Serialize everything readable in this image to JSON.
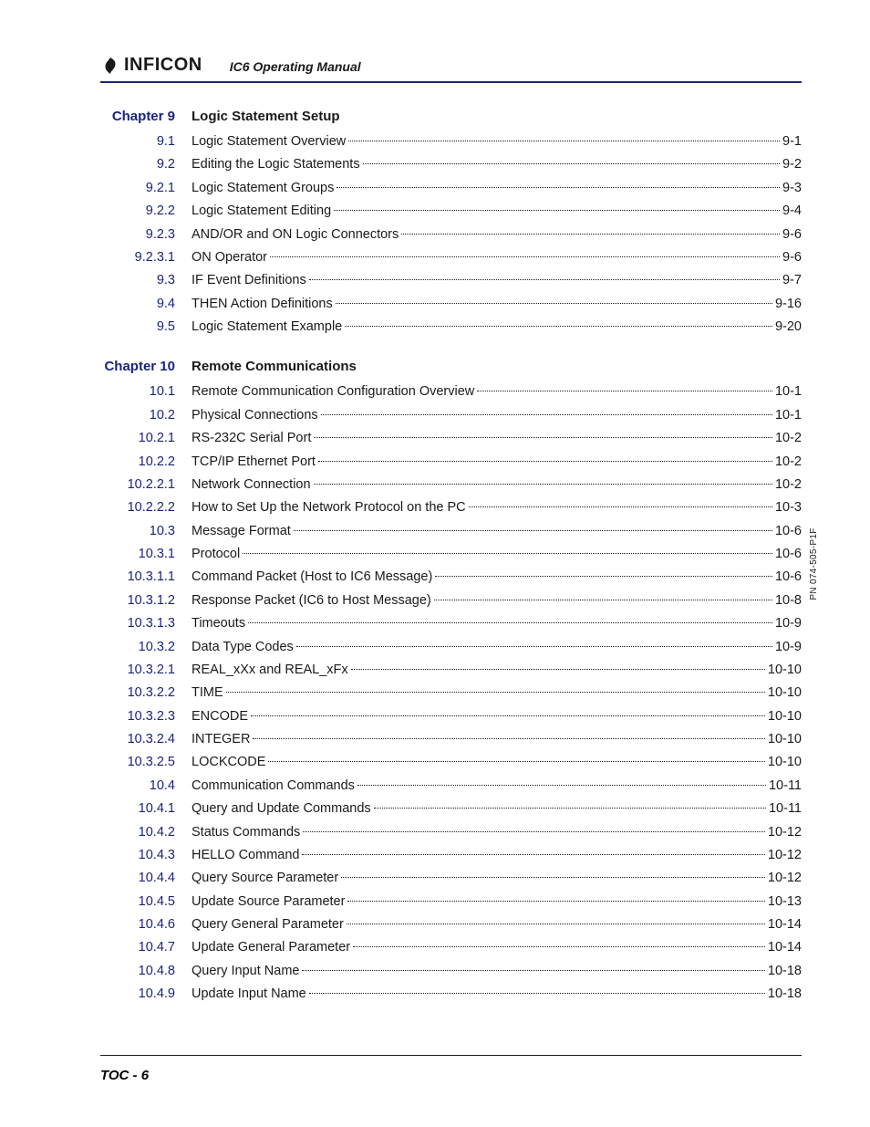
{
  "header": {
    "logo_text": "INFICON",
    "manual_title": "IC6 Operating Manual"
  },
  "side_label": "PN 074-505-P1F",
  "footer": "TOC - 6",
  "colors": {
    "link": "#1a237e",
    "text": "#1a1a1a",
    "rule": "#1a237e"
  },
  "chapters": [
    {
      "chapter_label": "Chapter 9",
      "chapter_title": "Logic Statement Setup",
      "entries": [
        {
          "num": "9.1",
          "title": "Logic Statement Overview",
          "page": "9-1"
        },
        {
          "num": "9.2",
          "title": "Editing the Logic Statements",
          "page": "9-2"
        },
        {
          "num": "9.2.1",
          "title": "Logic Statement Groups",
          "page": "9-3"
        },
        {
          "num": "9.2.2",
          "title": "Logic Statement Editing",
          "page": "9-4"
        },
        {
          "num": "9.2.3",
          "title": "AND/OR and ON Logic Connectors",
          "page": "9-6"
        },
        {
          "num": "9.2.3.1",
          "title": "ON Operator",
          "page": "9-6"
        },
        {
          "num": "9.3",
          "title": "IF Event Definitions",
          "page": "9-7"
        },
        {
          "num": "9.4",
          "title": "THEN Action Definitions",
          "page": "9-16"
        },
        {
          "num": "9.5",
          "title": "Logic Statement Example",
          "page": "9-20"
        }
      ]
    },
    {
      "chapter_label": "Chapter 10",
      "chapter_title": "Remote Communications",
      "entries": [
        {
          "num": "10.1",
          "title": "Remote Communication Configuration Overview",
          "page": "10-1"
        },
        {
          "num": "10.2",
          "title": "Physical Connections",
          "page": "10-1"
        },
        {
          "num": "10.2.1",
          "title": "RS-232C Serial Port",
          "page": "10-2"
        },
        {
          "num": "10.2.2",
          "title": "TCP/IP Ethernet Port",
          "page": "10-2"
        },
        {
          "num": "10.2.2.1",
          "title": "Network Connection",
          "page": "10-2"
        },
        {
          "num": "10.2.2.2",
          "title": "How to Set Up the Network Protocol on the PC",
          "page": "10-3"
        },
        {
          "num": "10.3",
          "title": "Message Format",
          "page": "10-6"
        },
        {
          "num": "10.3.1",
          "title": "Protocol",
          "page": "10-6"
        },
        {
          "num": "10.3.1.1",
          "title": "Command Packet (Host to IC6 Message)",
          "page": "10-6"
        },
        {
          "num": "10.3.1.2",
          "title": "Response Packet (IC6 to Host Message)",
          "page": "10-8"
        },
        {
          "num": "10.3.1.3",
          "title": "Timeouts",
          "page": "10-9"
        },
        {
          "num": "10.3.2",
          "title": "Data Type Codes",
          "page": "10-9"
        },
        {
          "num": "10.3.2.1",
          "title": "REAL_xXx and REAL_xFx",
          "page": "10-10"
        },
        {
          "num": "10.3.2.2",
          "title": "TIME",
          "page": "10-10"
        },
        {
          "num": "10.3.2.3",
          "title": "ENCODE",
          "page": "10-10"
        },
        {
          "num": "10.3.2.4",
          "title": "INTEGER",
          "page": "10-10"
        },
        {
          "num": "10.3.2.5",
          "title": "LOCKCODE",
          "page": "10-10"
        },
        {
          "num": "10.4",
          "title": "Communication Commands",
          "page": "10-11"
        },
        {
          "num": "10.4.1",
          "title": "Query and Update Commands",
          "page": "10-11"
        },
        {
          "num": "10.4.2",
          "title": "Status Commands",
          "page": "10-12"
        },
        {
          "num": "10.4.3",
          "title": "HELLO Command",
          "page": "10-12"
        },
        {
          "num": "10.4.4",
          "title": "Query Source Parameter",
          "page": "10-12"
        },
        {
          "num": "10.4.5",
          "title": "Update Source Parameter",
          "page": "10-13"
        },
        {
          "num": "10.4.6",
          "title": "Query General Parameter",
          "page": "10-14"
        },
        {
          "num": "10.4.7",
          "title": "Update General Parameter",
          "page": "10-14"
        },
        {
          "num": "10.4.8",
          "title": "Query Input Name",
          "page": "10-18"
        },
        {
          "num": "10.4.9",
          "title": "Update Input Name",
          "page": "10-18"
        }
      ]
    }
  ]
}
